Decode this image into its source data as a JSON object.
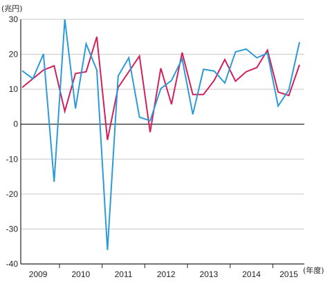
{
  "chart_data": {
    "type": "line",
    "title": "",
    "ylabel": "(兆円)",
    "xlabel": "(年度)",
    "ylim": [
      -40,
      30
    ],
    "yticks": [
      30,
      20,
      10,
      0,
      -10,
      -20,
      -30,
      -40
    ],
    "x_groups": [
      "2009",
      "2010",
      "2011",
      "2012",
      "2013",
      "2014",
      "2015"
    ],
    "x": [
      "2009Q1",
      "2009Q2",
      "2009Q3",
      "2009Q4",
      "2010Q1",
      "2010Q2",
      "2010Q3",
      "2010Q4",
      "2011Q1",
      "2011Q2",
      "2011Q3",
      "2011Q4",
      "2012Q1",
      "2012Q2",
      "2012Q3",
      "2012Q4",
      "2013Q1",
      "2013Q2",
      "2013Q3",
      "2013Q4",
      "2014Q1",
      "2014Q2",
      "2014Q3",
      "2014Q4",
      "2015Q1",
      "2015Q2",
      "2015Q3"
    ],
    "grid": true,
    "series": [
      {
        "color": "#d21f5a",
        "values": [
          10.5,
          13,
          15.5,
          16.7,
          3.7,
          14.5,
          15,
          25,
          -4.5,
          10.5,
          15,
          19.5,
          -2.3,
          16,
          5.7,
          20.5,
          8.5,
          8.5,
          12.5,
          18.5,
          12.3,
          15,
          16.2,
          21.2,
          9.2,
          8.2,
          17
        ]
      },
      {
        "color": "#2a9bd8",
        "values": [
          15.3,
          13,
          20.1,
          -16.5,
          30,
          4.5,
          23,
          15.5,
          -36,
          13.8,
          19,
          2,
          1,
          10.2,
          12.5,
          18.7,
          2.8,
          15.7,
          15.2,
          11.8,
          20.7,
          21.5,
          19,
          20.3,
          5.2,
          9.8,
          23.5
        ]
      }
    ]
  }
}
